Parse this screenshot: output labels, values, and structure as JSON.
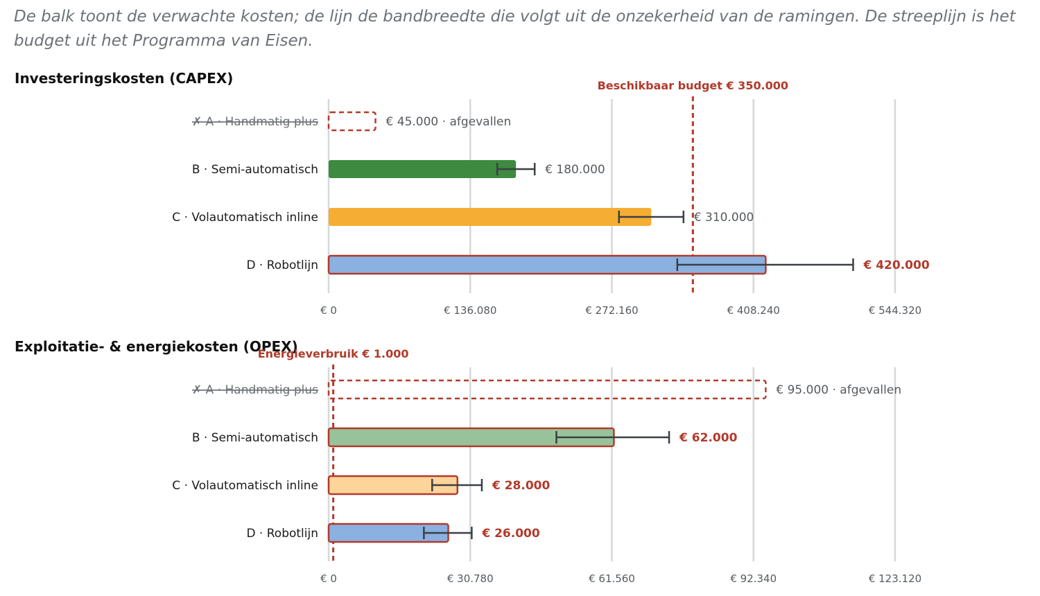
{
  "intro_text": "De balk toont de verwachte kosten; de lijn de bandbreedte die volgt uit de onzekerheid van de ramingen. De streeplijn is het budget uit het Programma van Eisen.",
  "colors": {
    "over_budget": "#b23a2a",
    "grid": "#d3d9da",
    "error_bar": "#3a3f44",
    "text_muted": "#555a5e"
  },
  "chart_data": [
    {
      "id": "capex",
      "type": "bar",
      "orientation": "horizontal",
      "title": "Investeringskosten (CAPEX)",
      "xlim": [
        0,
        544320
      ],
      "x_ticks": [
        0,
        136080,
        272160,
        408240,
        544320
      ],
      "x_tick_labels": [
        "€ 0",
        "€ 136.080",
        "€ 272.160",
        "€ 408.240",
        "€ 544.320"
      ],
      "grid": true,
      "reference_line": {
        "value": 350000,
        "label": "Beschikbaar budget € 350.000"
      },
      "categories": [
        "✗ A · Handmatig plus",
        "B · Semi-automatisch",
        "C · Volautomatisch inline",
        "D · Robotlijn"
      ],
      "values": [
        45000,
        180000,
        310000,
        420000
      ],
      "error_low": [
        null,
        162000,
        279000,
        335000
      ],
      "error_high": [
        null,
        198000,
        341000,
        504000
      ],
      "value_labels": [
        "€ 45.000 · afgevallen",
        "€ 180.000",
        "€ 310.000",
        "€ 420.000"
      ],
      "excluded": [
        true,
        false,
        false,
        false
      ],
      "over_budget": [
        false,
        false,
        false,
        true
      ],
      "bar_colors": [
        "none",
        "#3d8a40",
        "#f5ad33",
        "#8ab1e0"
      ]
    },
    {
      "id": "opex",
      "type": "bar",
      "orientation": "horizontal",
      "title": "Exploitatie- & energiekosten (OPEX)",
      "xlim": [
        0,
        123120
      ],
      "x_ticks": [
        0,
        30780,
        61560,
        92340,
        123120
      ],
      "x_tick_labels": [
        "€ 0",
        "€ 30.780",
        "€ 61.560",
        "€ 92.340",
        "€ 123.120"
      ],
      "grid": true,
      "reference_line": {
        "value": 1000,
        "label": "Energieverbruik € 1.000"
      },
      "categories": [
        "✗ A · Handmatig plus",
        "B · Semi-automatisch",
        "C · Volautomatisch inline",
        "D · Robotlijn"
      ],
      "values": [
        95000,
        62000,
        28000,
        26000
      ],
      "error_low": [
        null,
        49500,
        22500,
        20700
      ],
      "error_high": [
        null,
        74000,
        33300,
        31100
      ],
      "value_labels": [
        "€ 95.000 · afgevallen",
        "€ 62.000",
        "€ 28.000",
        "€ 26.000"
      ],
      "excluded": [
        true,
        false,
        false,
        false
      ],
      "over_budget": [
        false,
        true,
        true,
        true
      ],
      "bar_colors": [
        "none",
        "#98c39a",
        "#fdd49a",
        "#8ab1e0"
      ]
    }
  ]
}
